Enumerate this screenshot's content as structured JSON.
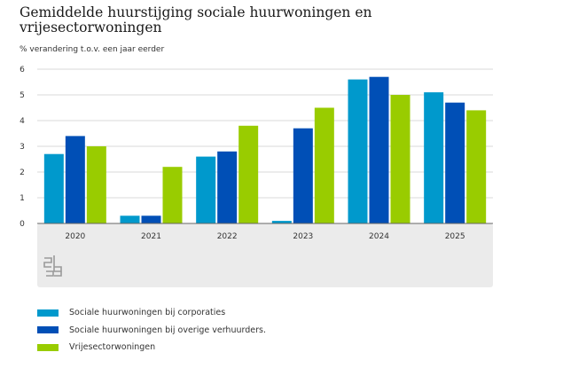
{
  "chart_data": {
    "type": "bar",
    "title": "Gemiddelde huurstijging sociale huurwoningen en vrijesectorwoningen",
    "ylabel": "% verandering t.o.v. een jaar eerder",
    "xlabel": "",
    "ylim": [
      0,
      6
    ],
    "yticks": [
      "0",
      "1",
      "2",
      "3",
      "4",
      "5",
      "6"
    ],
    "grid": true,
    "legend_position": "bottom",
    "categories": [
      "2020",
      "2021",
      "2022",
      "2023",
      "2024",
      "2025"
    ],
    "series": [
      {
        "name": "Sociale huurwoningen bij corporaties",
        "color": "#0099cc",
        "values": [
          2.7,
          0.3,
          2.6,
          0.1,
          5.6,
          5.1
        ]
      },
      {
        "name": "Sociale huurwoningen bij overige verhuurders.",
        "color": "#004fb6",
        "values": [
          3.4,
          0.3,
          2.8,
          3.7,
          5.7,
          4.7
        ]
      },
      {
        "name": "Vrijesectorwoningen",
        "color": "#99cc00",
        "values": [
          3.0,
          2.2,
          3.8,
          4.5,
          5.0,
          4.4
        ]
      }
    ]
  },
  "logo": {
    "name": "cbs-logo-icon",
    "color": "#9a9a9a"
  }
}
